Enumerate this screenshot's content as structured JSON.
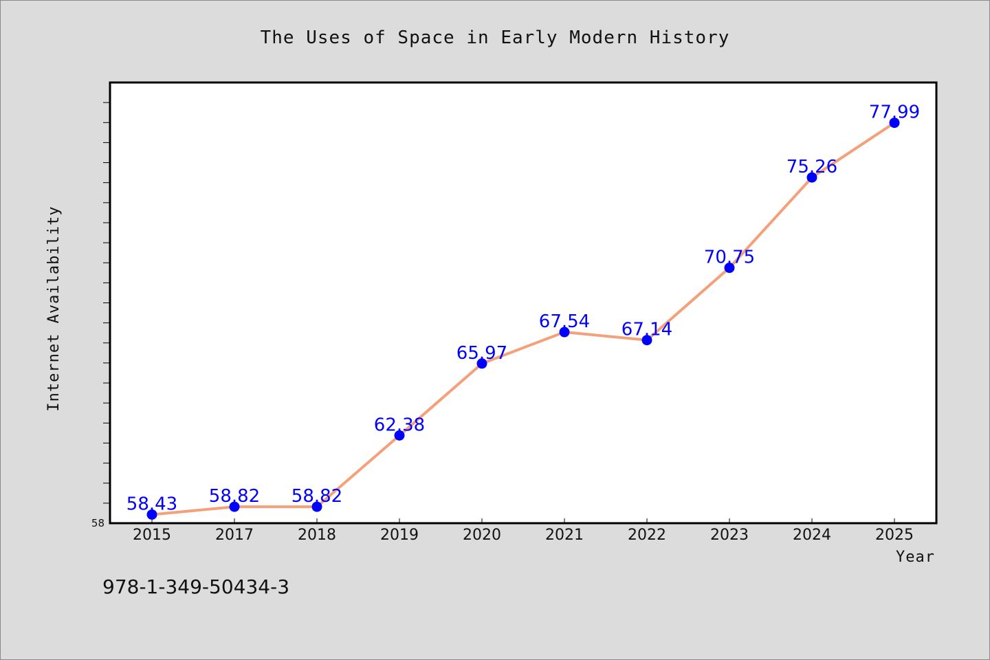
{
  "chart_data": {
    "type": "line",
    "title": "The Uses of Space in Early Modern History",
    "xlabel": "Year",
    "ylabel": "Internet Availability",
    "x": [
      "2015",
      "2017",
      "2018",
      "2019",
      "2020",
      "2021",
      "2022",
      "2023",
      "2024",
      "2025"
    ],
    "values": [
      58.43,
      58.82,
      58.82,
      62.38,
      65.97,
      67.54,
      67.14,
      70.75,
      75.26,
      77.99
    ],
    "data_labels": [
      "58.43",
      "58.82",
      "58.82",
      "62.38",
      "65.97",
      "67.54",
      "67.14",
      "70.75",
      "75.26",
      "77.99"
    ],
    "y_tick_labels": [
      "58"
    ],
    "ylim": [
      58,
      80
    ],
    "grid": false,
    "legend": "none",
    "colors": {
      "line": "#f4a07a",
      "marker": "#0000ff",
      "data_label": "#0000ff",
      "plot_background": "#ffffff",
      "figure_background": "#dcdcdc"
    }
  },
  "footer": {
    "isbn": "978-1-349-50434-3"
  }
}
